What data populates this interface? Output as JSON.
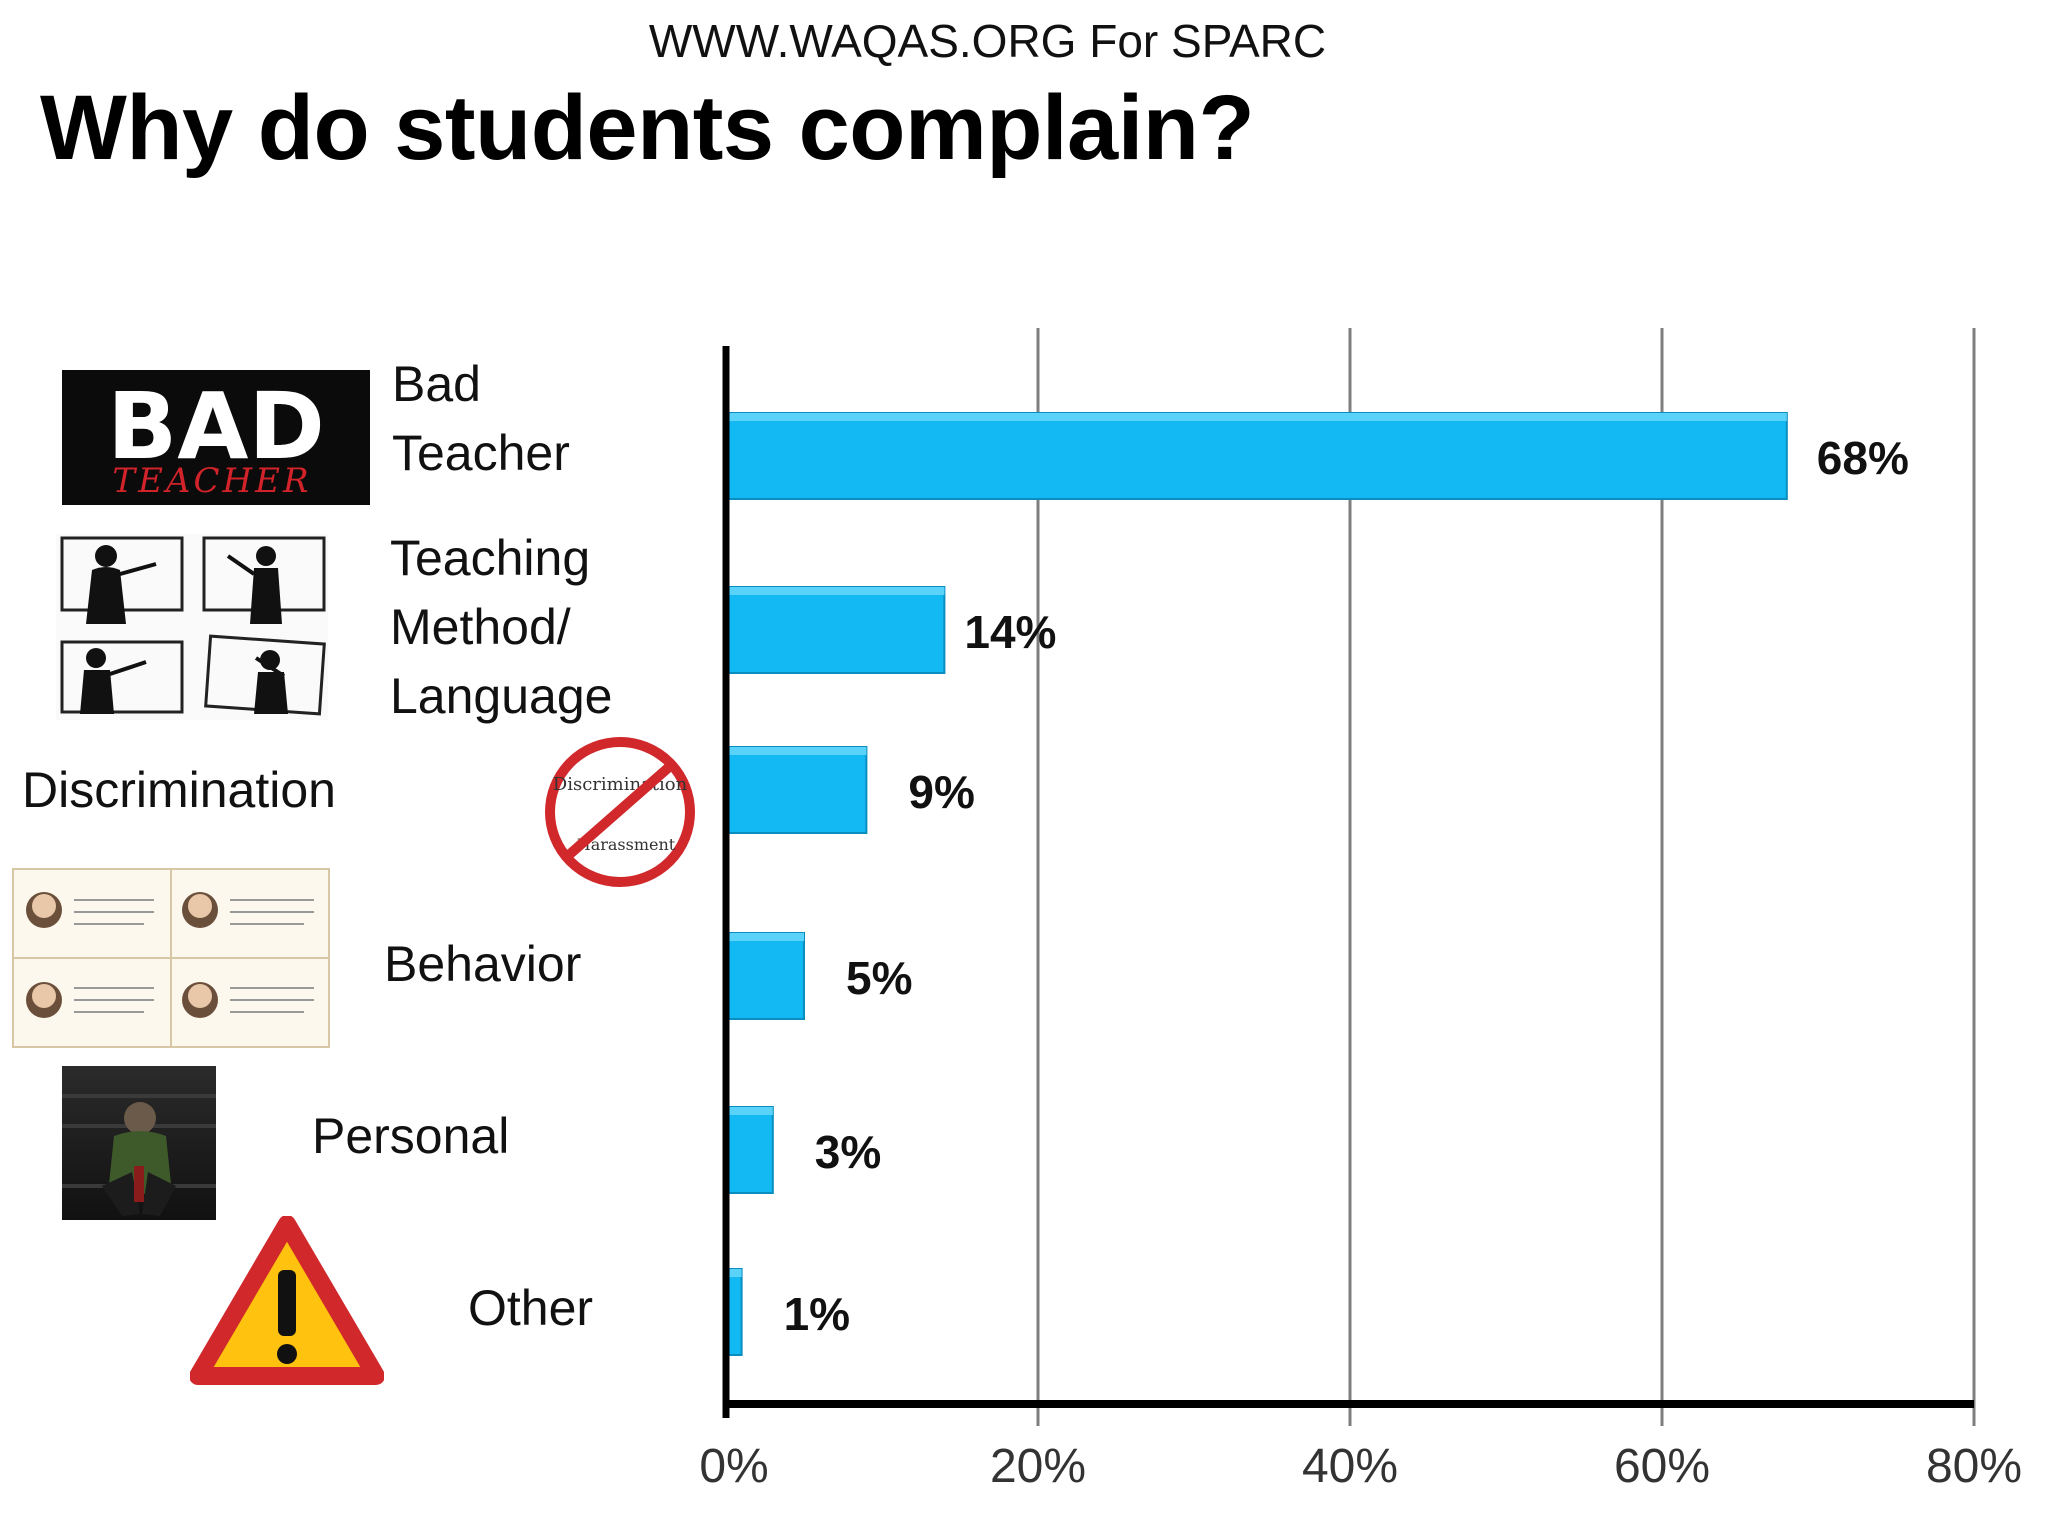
{
  "header": {
    "url_text": "WWW.WAQAS.ORG For SPARC",
    "title": "Why do students complain?"
  },
  "pictures": {
    "bad_teacher_logo": {
      "big": "BAD",
      "small": "TEACHER"
    },
    "discrimination_sign": {
      "top": "Discrimination",
      "bottom": "Harassment"
    }
  },
  "colors": {
    "bar_fill": "#12B9F2",
    "bar_top": "#5AD2FA",
    "bar_stroke": "#0A8EC0",
    "axis": "#000000",
    "grid": "#7F7F7F",
    "warning_red": "#D0282B",
    "warning_yellow": "#FFC20E"
  },
  "chart_data": {
    "type": "bar",
    "orientation": "horizontal",
    "title": "",
    "xlabel": "",
    "ylabel": "",
    "xlim": [
      0,
      80
    ],
    "x_ticks": [
      "0%",
      "20%",
      "40%",
      "60%",
      "80%"
    ],
    "grid": "vertical",
    "categories": [
      {
        "lines": [
          "Bad",
          "Teacher"
        ]
      },
      {
        "lines": [
          "Teaching",
          "Method/",
          "Language"
        ]
      },
      {
        "lines": [
          "Discrimination"
        ]
      },
      {
        "lines": [
          "Behavior"
        ]
      },
      {
        "lines": [
          "Personal"
        ]
      },
      {
        "lines": [
          "Other"
        ]
      }
    ],
    "values": [
      68,
      14,
      9,
      5,
      3,
      1
    ],
    "value_labels": [
      "68%",
      "14%",
      "9%",
      "5%",
      "3%",
      "1%"
    ]
  }
}
